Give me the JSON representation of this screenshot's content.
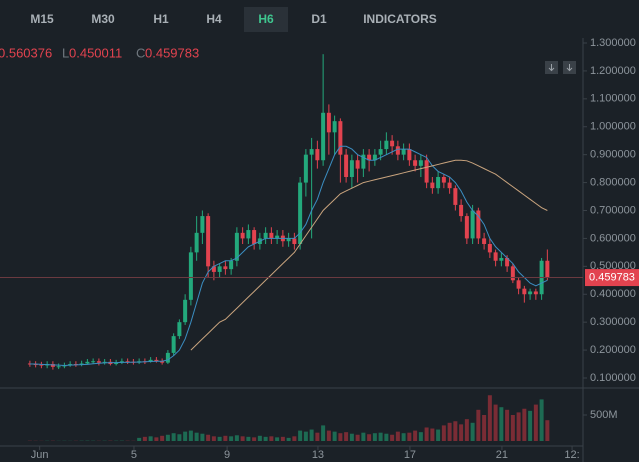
{
  "toolbar": {
    "buttons": [
      "M15",
      "M30",
      "H1",
      "H4",
      "H6",
      "D1",
      "INDICATORS"
    ],
    "active": 4
  },
  "chart_data": {
    "type": "candlestick",
    "ohlc_labels": [
      "L",
      "C"
    ],
    "open": [
      0.152,
      0.15,
      0.148,
      0.145,
      0.15,
      0.14,
      0.142,
      0.145,
      0.15,
      0.148,
      0.152,
      0.158,
      0.16,
      0.155,
      0.158,
      0.15,
      0.155,
      0.16,
      0.158,
      0.155,
      0.16,
      0.158,
      0.165,
      0.16,
      0.155,
      0.19,
      0.25,
      0.3,
      0.38,
      0.55,
      0.62,
      0.68,
      0.5,
      0.48,
      0.5,
      0.49,
      0.52,
      0.62,
      0.6,
      0.63,
      0.58,
      0.6,
      0.62,
      0.6,
      0.61,
      0.59,
      0.6,
      0.58,
      0.8,
      0.9,
      0.92,
      0.88,
      1.05,
      0.98,
      1.02,
      0.9,
      0.82,
      0.88,
      0.85,
      0.9,
      0.88,
      0.9,
      0.92,
      0.95,
      0.93,
      0.9,
      0.92,
      0.88,
      0.86,
      0.88,
      0.8,
      0.78,
      0.82,
      0.8,
      0.78,
      0.72,
      0.68,
      0.6,
      0.7,
      0.6,
      0.58,
      0.55,
      0.52,
      0.53,
      0.5,
      0.45,
      0.42,
      0.4,
      0.41,
      0.4,
      0.52
    ],
    "high": [
      0.162,
      0.16,
      0.158,
      0.16,
      0.16,
      0.152,
      0.155,
      0.16,
      0.16,
      0.162,
      0.168,
      0.17,
      0.17,
      0.168,
      0.168,
      0.165,
      0.17,
      0.17,
      0.168,
      0.17,
      0.17,
      0.175,
      0.175,
      0.17,
      0.2,
      0.26,
      0.31,
      0.4,
      0.57,
      0.68,
      0.7,
      0.69,
      0.52,
      0.51,
      0.52,
      0.53,
      0.64,
      0.64,
      0.65,
      0.64,
      0.62,
      0.64,
      0.64,
      0.63,
      0.63,
      0.62,
      0.62,
      0.82,
      0.92,
      0.96,
      0.95,
      1.26,
      1.08,
      1.04,
      1.03,
      0.92,
      0.9,
      0.9,
      0.92,
      0.92,
      0.92,
      0.95,
      0.98,
      0.97,
      0.95,
      0.94,
      0.94,
      0.9,
      0.9,
      0.9,
      0.82,
      0.84,
      0.83,
      0.82,
      0.79,
      0.74,
      0.69,
      0.72,
      0.71,
      0.62,
      0.6,
      0.56,
      0.55,
      0.54,
      0.51,
      0.46,
      0.43,
      0.42,
      0.42,
      0.53,
      0.560376
    ],
    "low": [
      0.14,
      0.138,
      0.135,
      0.135,
      0.13,
      0.132,
      0.135,
      0.14,
      0.14,
      0.142,
      0.148,
      0.15,
      0.145,
      0.148,
      0.145,
      0.145,
      0.15,
      0.15,
      0.148,
      0.15,
      0.15,
      0.155,
      0.155,
      0.148,
      0.15,
      0.18,
      0.24,
      0.29,
      0.36,
      0.52,
      0.58,
      0.46,
      0.45,
      0.46,
      0.47,
      0.47,
      0.5,
      0.58,
      0.58,
      0.56,
      0.56,
      0.58,
      0.58,
      0.58,
      0.57,
      0.57,
      0.56,
      0.56,
      0.75,
      0.6,
      0.85,
      0.86,
      0.9,
      0.9,
      0.8,
      0.8,
      0.78,
      0.8,
      0.82,
      0.84,
      0.86,
      0.88,
      0.9,
      0.9,
      0.88,
      0.88,
      0.86,
      0.84,
      0.82,
      0.78,
      0.76,
      0.76,
      0.78,
      0.76,
      0.7,
      0.66,
      0.58,
      0.58,
      0.58,
      0.56,
      0.53,
      0.5,
      0.5,
      0.48,
      0.44,
      0.4,
      0.37,
      0.38,
      0.38,
      0.38,
      0.450011
    ],
    "close": [
      0.15,
      0.148,
      0.145,
      0.15,
      0.14,
      0.142,
      0.145,
      0.15,
      0.148,
      0.152,
      0.158,
      0.16,
      0.155,
      0.158,
      0.15,
      0.155,
      0.16,
      0.158,
      0.155,
      0.16,
      0.158,
      0.165,
      0.16,
      0.155,
      0.19,
      0.25,
      0.3,
      0.38,
      0.55,
      0.62,
      0.68,
      0.5,
      0.48,
      0.5,
      0.49,
      0.52,
      0.62,
      0.6,
      0.63,
      0.58,
      0.6,
      0.62,
      0.6,
      0.61,
      0.59,
      0.6,
      0.58,
      0.8,
      0.9,
      0.92,
      0.88,
      1.05,
      0.98,
      1.02,
      0.9,
      0.82,
      0.88,
      0.85,
      0.9,
      0.88,
      0.9,
      0.92,
      0.95,
      0.93,
      0.9,
      0.92,
      0.88,
      0.86,
      0.88,
      0.8,
      0.78,
      0.82,
      0.8,
      0.78,
      0.72,
      0.68,
      0.6,
      0.7,
      0.6,
      0.58,
      0.55,
      0.52,
      0.53,
      0.5,
      0.45,
      0.42,
      0.4,
      0.41,
      0.4,
      0.52,
      0.459783
    ],
    "volume": [
      5000000,
      4000000,
      3000000,
      4000000,
      5000000,
      3000000,
      4000000,
      3000000,
      4000000,
      5000000,
      6000000,
      5000000,
      4000000,
      5000000,
      6000000,
      5000000,
      6000000,
      5000000,
      4000000,
      60000000,
      80000000,
      90000000,
      70000000,
      100000000,
      120000000,
      150000000,
      130000000,
      180000000,
      200000000,
      160000000,
      140000000,
      120000000,
      90000000,
      80000000,
      100000000,
      90000000,
      110000000,
      90000000,
      80000000,
      70000000,
      100000000,
      80000000,
      90000000,
      70000000,
      80000000,
      60000000,
      90000000,
      200000000,
      180000000,
      220000000,
      160000000,
      300000000,
      200000000,
      180000000,
      150000000,
      170000000,
      140000000,
      120000000,
      160000000,
      130000000,
      150000000,
      160000000,
      140000000,
      120000000,
      180000000,
      150000000,
      160000000,
      200000000,
      170000000,
      260000000,
      240000000,
      220000000,
      300000000,
      350000000,
      380000000,
      320000000,
      420000000,
      350000000,
      600000000,
      500000000,
      880000000,
      700000000,
      650000000,
      600000000,
      500000000,
      550000000,
      620000000,
      580000000,
      700000000,
      800000000,
      400000000
    ],
    "ma": [
      {
        "color": "#3b8ec2",
        "values": [
          0.15,
          0.15,
          0.149,
          0.148,
          0.147,
          0.146,
          0.145,
          0.146,
          0.147,
          0.148,
          0.149,
          0.151,
          0.153,
          0.154,
          0.155,
          0.155,
          0.156,
          0.156,
          0.157,
          0.157,
          0.158,
          0.159,
          0.16,
          0.16,
          0.165,
          0.18,
          0.2,
          0.24,
          0.3,
          0.37,
          0.44,
          0.48,
          0.5,
          0.51,
          0.52,
          0.52,
          0.53,
          0.55,
          0.57,
          0.58,
          0.59,
          0.6,
          0.6,
          0.6,
          0.6,
          0.6,
          0.6,
          0.62,
          0.65,
          0.7,
          0.74,
          0.8,
          0.85,
          0.9,
          0.93,
          0.93,
          0.92,
          0.9,
          0.89,
          0.88,
          0.88,
          0.89,
          0.9,
          0.91,
          0.92,
          0.92,
          0.92,
          0.91,
          0.9,
          0.89,
          0.86,
          0.84,
          0.83,
          0.82,
          0.8,
          0.77,
          0.73,
          0.7,
          0.68,
          0.65,
          0.6,
          0.57,
          0.55,
          0.53,
          0.51,
          0.48,
          0.46,
          0.44,
          0.43,
          0.44,
          0.45
        ]
      },
      {
        "color": "#c9a47e",
        "values": [
          null,
          null,
          null,
          null,
          null,
          null,
          null,
          null,
          null,
          null,
          null,
          null,
          null,
          null,
          null,
          null,
          null,
          null,
          null,
          null,
          null,
          null,
          null,
          null,
          null,
          null,
          null,
          null,
          0.2,
          0.22,
          0.24,
          0.26,
          0.28,
          0.3,
          0.31,
          0.33,
          0.35,
          0.37,
          0.39,
          0.41,
          0.43,
          0.45,
          0.47,
          0.49,
          0.51,
          0.53,
          0.55,
          0.58,
          0.61,
          0.64,
          0.67,
          0.7,
          0.72,
          0.74,
          0.76,
          0.77,
          0.78,
          0.79,
          0.8,
          0.805,
          0.81,
          0.815,
          0.82,
          0.825,
          0.83,
          0.835,
          0.84,
          0.845,
          0.85,
          0.855,
          0.86,
          0.865,
          0.87,
          0.875,
          0.88,
          0.88,
          0.878,
          0.87,
          0.86,
          0.85,
          0.84,
          0.83,
          0.815,
          0.8,
          0.785,
          0.77,
          0.755,
          0.74,
          0.725,
          0.71,
          0.7
        ]
      }
    ],
    "up_color": "#23a97c",
    "down_color": "#e2434f",
    "xlim": [
      -5.2,
      96.2
    ],
    "xticks": [
      {
        "value": 1.7,
        "label": "Jun"
      },
      {
        "value": 18.1,
        "label": "5"
      },
      {
        "value": 34.3,
        "label": "9"
      },
      {
        "value": 50.1,
        "label": "13"
      },
      {
        "value": 66.1,
        "label": "17"
      },
      {
        "value": 82.1,
        "label": "21"
      },
      {
        "value": 94.3,
        "label": "12:"
      }
    ],
    "ylim": [
      0.1,
      1.3
    ],
    "yticks": [
      {
        "value": 0.1,
        "label": "0.100000"
      },
      {
        "value": 0.2,
        "label": "0.200000"
      },
      {
        "value": 0.3,
        "label": "0.300000"
      },
      {
        "value": 0.4,
        "label": "0.400000"
      },
      {
        "value": 0.5,
        "label": "0.500000"
      },
      {
        "value": 0.6,
        "label": "0.600000"
      },
      {
        "value": 0.7,
        "label": "0.700000"
      },
      {
        "value": 0.8,
        "label": "0.800000"
      },
      {
        "value": 0.9,
        "label": "0.900000"
      },
      {
        "value": 1.0,
        "label": "1.000000"
      },
      {
        "value": 1.1,
        "label": "1.100000"
      },
      {
        "value": 1.2,
        "label": "1.200000"
      },
      {
        "value": 1.3,
        "label": "1.300000"
      }
    ],
    "y2lim": [
      0,
      1000000000
    ],
    "y2ticks": [
      {
        "value": 500000000,
        "label": "500M"
      }
    ]
  }
}
